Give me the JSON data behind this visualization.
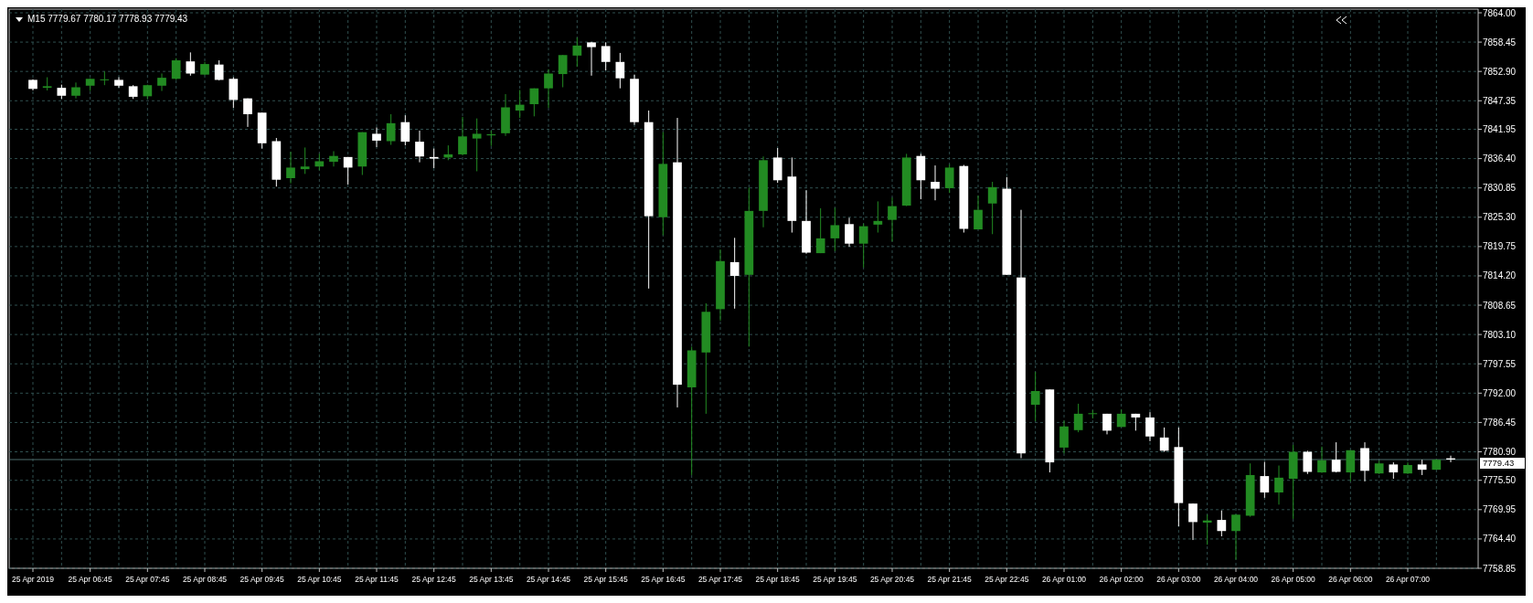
{
  "chart_data": {
    "type": "candlestick",
    "title": "M15  7779.67 7780.17 7778.93 7779.43",
    "categories": [
      "25 Apr 2019",
      null,
      null,
      null,
      "25 Apr 06:45",
      null,
      null,
      null,
      "25 Apr 07:45",
      null,
      null,
      null,
      "25 Apr 08:45",
      null,
      null,
      null,
      "25 Apr 09:45",
      null,
      null,
      null,
      "25 Apr 10:45",
      null,
      null,
      null,
      "25 Apr 11:45",
      null,
      null,
      null,
      "25 Apr 12:45",
      null,
      null,
      null,
      "25 Apr 13:45",
      null,
      null,
      null,
      "25 Apr 14:45",
      null,
      null,
      null,
      "25 Apr 15:45",
      null,
      null,
      null,
      "25 Apr 16:45",
      null,
      null,
      null,
      "25 Apr 17:45",
      null,
      null,
      null,
      "25 Apr 18:45",
      null,
      null,
      null,
      "25 Apr 19:45",
      null,
      null,
      null,
      "25 Apr 20:45",
      null,
      null,
      null,
      "25 Apr 21:45",
      null,
      null,
      null,
      "25 Apr 22:45",
      null,
      null,
      null,
      "26 Apr 01:00",
      null,
      null,
      null,
      "26 Apr 02:00",
      null,
      null,
      null,
      "26 Apr 03:00",
      null,
      null,
      null,
      "26 Apr 04:00",
      null,
      null,
      null,
      "26 Apr 05:00",
      null,
      null,
      null,
      "26 Apr 06:00",
      null,
      null,
      null,
      "26 Apr 07:00",
      null,
      null,
      null
    ],
    "ohlc": [
      [
        7851.3,
        7851.4,
        7849.3,
        7849.6
      ],
      [
        7849.8,
        7851.8,
        7849.3,
        7850.1
      ],
      [
        7849.8,
        7850.4,
        7847.7,
        7848.3
      ],
      [
        7848.3,
        7850.8,
        7847.8,
        7849.9
      ],
      [
        7850.2,
        7851.6,
        7849.2,
        7851.5
      ],
      [
        7851.3,
        7852.9,
        7850.3,
        7851.4
      ],
      [
        7851.3,
        7851.8,
        7849.8,
        7850.2
      ],
      [
        7850.1,
        7850.3,
        7847.7,
        7848.1
      ],
      [
        7848.2,
        7850.4,
        7847.7,
        7850.3
      ],
      [
        7850.2,
        7852.5,
        7849.2,
        7851.7
      ],
      [
        7851.5,
        7855.4,
        7851.3,
        7855.0
      ],
      [
        7854.8,
        7856.5,
        7852.1,
        7852.5
      ],
      [
        7852.3,
        7854.7,
        7852.2,
        7854.3
      ],
      [
        7854.2,
        7855.0,
        7851.2,
        7851.3
      ],
      [
        7851.5,
        7851.8,
        7846.0,
        7847.5
      ],
      [
        7847.8,
        7847.8,
        7842.4,
        7844.8
      ],
      [
        7845.1,
        7845.1,
        7838.3,
        7839.3
      ],
      [
        7839.7,
        7840.3,
        7831.1,
        7832.4
      ],
      [
        7832.7,
        7837.7,
        7831.7,
        7834.7
      ],
      [
        7834.4,
        7838.5,
        7833.5,
        7834.9
      ],
      [
        7834.9,
        7837.3,
        7834.2,
        7835.9
      ],
      [
        7835.8,
        7837.8,
        7834.9,
        7836.9
      ],
      [
        7836.7,
        7836.7,
        7831.5,
        7834.7
      ],
      [
        7834.9,
        7841.4,
        7833.3,
        7841.4
      ],
      [
        7841.1,
        7842.3,
        7838.6,
        7839.8
      ],
      [
        7839.7,
        7844.8,
        7839.0,
        7843.1
      ],
      [
        7843.3,
        7844.6,
        7838.9,
        7839.6
      ],
      [
        7839.6,
        7841.7,
        7835.7,
        7836.8
      ],
      [
        7836.7,
        7838.3,
        7834.6,
        7836.4
      ],
      [
        7836.6,
        7838.9,
        7836.1,
        7837.2
      ],
      [
        7837.2,
        7844.3,
        7837.0,
        7840.6
      ],
      [
        7840.2,
        7844.0,
        7834.0,
        7841.1
      ],
      [
        7840.8,
        7841.7,
        7838.8,
        7841.0
      ],
      [
        7841.2,
        7848.6,
        7840.7,
        7846.1
      ],
      [
        7845.5,
        7849.4,
        7844.1,
        7846.6
      ],
      [
        7846.7,
        7849.7,
        7844.4,
        7849.7
      ],
      [
        7849.7,
        7853.3,
        7846.0,
        7852.5
      ],
      [
        7852.4,
        7856.0,
        7849.9,
        7856.0
      ],
      [
        7855.9,
        7859.3,
        7853.8,
        7857.8
      ],
      [
        7858.4,
        7858.5,
        7852.1,
        7857.5
      ],
      [
        7857.7,
        7858.4,
        7853.1,
        7854.7
      ],
      [
        7854.7,
        7856.4,
        7849.7,
        7851.6
      ],
      [
        7851.5,
        7852.3,
        7842.8,
        7843.3
      ],
      [
        7843.3,
        7845.5,
        7811.8,
        7825.5
      ],
      [
        7825.3,
        7841.4,
        7821.9,
        7835.4
      ],
      [
        7835.7,
        7844.1,
        7789.3,
        7793.6
      ],
      [
        7793.1,
        7800.8,
        7776.5,
        7800.1
      ],
      [
        7799.7,
        7809.0,
        7788.1,
        7807.4
      ],
      [
        7807.9,
        7819.2,
        7805.7,
        7817.0
      ],
      [
        7816.8,
        7821.4,
        7808.0,
        7814.2
      ],
      [
        7814.4,
        7830.9,
        7800.8,
        7826.5
      ],
      [
        7826.5,
        7836.8,
        7823.4,
        7836.1
      ],
      [
        7836.6,
        7838.4,
        7831.8,
        7832.3
      ],
      [
        7833.0,
        7836.6,
        7822.4,
        7824.6
      ],
      [
        7824.6,
        7830.4,
        7818.4,
        7818.6
      ],
      [
        7818.5,
        7827.0,
        7818.5,
        7821.3
      ],
      [
        7821.3,
        7827.1,
        7818.9,
        7823.8
      ],
      [
        7824.0,
        7825.2,
        7819.7,
        7820.3
      ],
      [
        7820.3,
        7824.1,
        7815.8,
        7823.6
      ],
      [
        7823.9,
        7828.3,
        7822.4,
        7824.6
      ],
      [
        7824.8,
        7829.0,
        7820.7,
        7827.4
      ],
      [
        7827.5,
        7837.3,
        7827.4,
        7836.6
      ],
      [
        7836.9,
        7837.3,
        7828.7,
        7832.3
      ],
      [
        7832.0,
        7835.1,
        7828.5,
        7830.7
      ],
      [
        7830.8,
        7835.3,
        7829.9,
        7834.7
      ],
      [
        7835.0,
        7835.2,
        7822.4,
        7823.1
      ],
      [
        7823.0,
        7829.4,
        7823.0,
        7826.7
      ],
      [
        7827.9,
        7832.0,
        7822.1,
        7831.0
      ],
      [
        7830.7,
        7832.9,
        7814.4,
        7814.4
      ],
      [
        7813.9,
        7826.7,
        7779.7,
        7780.6
      ],
      [
        7789.8,
        7796.0,
        7786.7,
        7792.4
      ],
      [
        7792.7,
        7792.7,
        7777.0,
        7778.9
      ],
      [
        7781.7,
        7786.8,
        7780.6,
        7785.7
      ],
      [
        7785.0,
        7790.0,
        7784.6,
        7788.1
      ],
      [
        7788.1,
        7788.8,
        7787.2,
        7788.2
      ],
      [
        7788.1,
        7788.1,
        7784.2,
        7784.9
      ],
      [
        7785.6,
        7788.9,
        7785.6,
        7788.1
      ],
      [
        7788.1,
        7788.1,
        7784.9,
        7787.4
      ],
      [
        7787.4,
        7788.4,
        7782.9,
        7783.8
      ],
      [
        7783.6,
        7785.5,
        7780.9,
        7781.1
      ],
      [
        7781.8,
        7785.5,
        7766.8,
        7771.2
      ],
      [
        7771.1,
        7771.1,
        7764.2,
        7767.6
      ],
      [
        7767.5,
        7769.0,
        7763.3,
        7767.9
      ],
      [
        7768.0,
        7769.8,
        7764.9,
        7765.9
      ],
      [
        7765.9,
        7769.1,
        7760.5,
        7769.0
      ],
      [
        7768.8,
        7778.7,
        7768.6,
        7776.5
      ],
      [
        7776.3,
        7779.0,
        7772.2,
        7773.2
      ],
      [
        7773.2,
        7778.3,
        7770.9,
        7776.0
      ],
      [
        7775.8,
        7782.2,
        7768.2,
        7780.9
      ],
      [
        7780.9,
        7781.1,
        7776.7,
        7777.1
      ],
      [
        7777.0,
        7781.9,
        7776.9,
        7779.3
      ],
      [
        7779.4,
        7782.7,
        7777.0,
        7777.1
      ],
      [
        7777.0,
        7781.2,
        7775.3,
        7781.2
      ],
      [
        7781.6,
        7782.7,
        7775.3,
        7777.3
      ],
      [
        7776.8,
        7779.2,
        7776.7,
        7778.7
      ],
      [
        7778.5,
        7778.9,
        7775.8,
        7777.0
      ],
      [
        7776.8,
        7778.9,
        7776.7,
        7778.4
      ],
      [
        7778.5,
        7779.4,
        7776.5,
        7777.5
      ],
      [
        7777.5,
        7779.5,
        7777.5,
        7779.4
      ],
      [
        7779.67,
        7780.17,
        7778.93,
        7779.43
      ]
    ],
    "colors": [
      "#ffffff",
      "#228b22",
      "#ffffff",
      "#228b22",
      "#228b22",
      "#228b22",
      "#ffffff",
      "#ffffff",
      "#228b22",
      "#228b22",
      "#228b22",
      "#ffffff",
      "#228b22",
      "#ffffff",
      "#ffffff",
      "#ffffff",
      "#ffffff",
      "#ffffff",
      "#228b22",
      "#228b22",
      "#228b22",
      "#228b22",
      "#ffffff",
      "#228b22",
      "#ffffff",
      "#228b22",
      "#ffffff",
      "#ffffff",
      "#ffffff",
      "#228b22",
      "#228b22",
      "#228b22",
      "#228b22",
      "#228b22",
      "#228b22",
      "#228b22",
      "#228b22",
      "#228b22",
      "#228b22",
      "#ffffff",
      "#ffffff",
      "#ffffff",
      "#ffffff",
      "#ffffff",
      "#228b22",
      "#ffffff",
      "#228b22",
      "#228b22",
      "#228b22",
      "#ffffff",
      "#228b22",
      "#228b22",
      "#ffffff",
      "#ffffff",
      "#ffffff",
      "#228b22",
      "#228b22",
      "#ffffff",
      "#228b22",
      "#228b22",
      "#228b22",
      "#228b22",
      "#ffffff",
      "#ffffff",
      "#228b22",
      "#ffffff",
      "#228b22",
      "#228b22",
      "#ffffff",
      "#ffffff",
      "#228b22",
      "#ffffff",
      "#228b22",
      "#228b22",
      "#228b22",
      "#ffffff",
      "#228b22",
      "#ffffff",
      "#ffffff",
      "#ffffff",
      "#ffffff",
      "#ffffff",
      "#228b22",
      "#ffffff",
      "#228b22",
      "#228b22",
      "#ffffff",
      "#228b22",
      "#228b22",
      "#ffffff",
      "#228b22",
      "#ffffff",
      "#228b22",
      "#ffffff",
      "#228b22",
      "#ffffff",
      "#228b22",
      "#ffffff",
      "#228b22",
      "#ffffff"
    ],
    "ylim": [
      7758.85,
      7864.0
    ],
    "yticks": [
      {
        "value": 7864.0,
        "label": "7864.00"
      },
      {
        "value": 7858.45,
        "label": "7858.45"
      },
      {
        "value": 7852.9,
        "label": "7852.90"
      },
      {
        "value": 7847.35,
        "label": "7847.35"
      },
      {
        "value": 7841.95,
        "label": "7841.95"
      },
      {
        "value": 7836.4,
        "label": "7836.40"
      },
      {
        "value": 7830.85,
        "label": "7830.85"
      },
      {
        "value": 7825.3,
        "label": "7825.30"
      },
      {
        "value": 7819.75,
        "label": "7819.75"
      },
      {
        "value": 7814.2,
        "label": "7814.20"
      },
      {
        "value": 7808.65,
        "label": "7808.65"
      },
      {
        "value": 7803.1,
        "label": "7803.10"
      },
      {
        "value": 7797.55,
        "label": "7797.55"
      },
      {
        "value": 7792.0,
        "label": "7792.00"
      },
      {
        "value": 7786.45,
        "label": "7786.45"
      },
      {
        "value": 7780.9,
        "label": "7780.90"
      },
      {
        "value": 7775.5,
        "label": "7775.50"
      },
      {
        "value": 7769.95,
        "label": "7769.95"
      },
      {
        "value": 7764.4,
        "label": "7764.40"
      },
      {
        "value": 7758.85,
        "label": "7758.85"
      }
    ],
    "grid": true,
    "ref_lines": [
      {
        "axis": "y",
        "value": 7779.43,
        "label": "7779.43",
        "color": "#4f6f6f"
      }
    ]
  }
}
